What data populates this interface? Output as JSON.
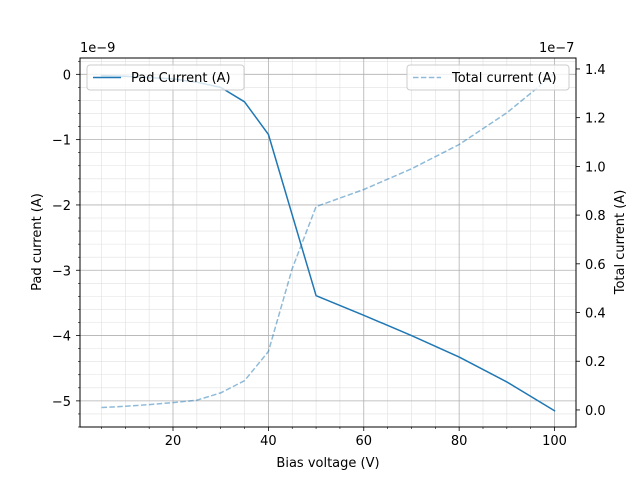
{
  "chart_data": {
    "type": "line",
    "xlabel": "Bias voltage (V)",
    "xlim": [
      0.5,
      104.5
    ],
    "x_ticks": [
      20,
      40,
      60,
      80,
      100
    ],
    "x_minor_step": 5,
    "grid": true,
    "left_axis": {
      "label": "Pad current (A)",
      "offset_text": "1e−9",
      "ylim": [
        -5.4e-09,
        2.5e-10
      ],
      "ticks": [
        0,
        -1e-09,
        -2e-09,
        -3e-09,
        -4e-09,
        -5e-09
      ],
      "tick_labels": [
        "0",
        "−1",
        "−2",
        "−3",
        "−4",
        "−5"
      ],
      "minor_step": 2e-10
    },
    "right_axis": {
      "label": "Total current (A)",
      "offset_text": "1e−7",
      "ylim": [
        -7e-09,
        1.445e-07
      ],
      "ticks": [
        0,
        2e-08,
        4e-08,
        6e-08,
        8e-08,
        1e-07,
        1.2e-07,
        1.4e-07
      ],
      "tick_labels": [
        "0.0",
        "0.2",
        "0.4",
        "0.6",
        "0.8",
        "1.0",
        "1.2",
        "1.4"
      ]
    },
    "series": [
      {
        "name": "Pad Current (A)",
        "axis": "left",
        "color": "#1f77b4",
        "style": "solid",
        "x": [
          5,
          10,
          15,
          20,
          25,
          30,
          35,
          40,
          50,
          60,
          70,
          80,
          90,
          100
        ],
        "y": [
          -2e-11,
          -3e-11,
          -5e-11,
          -7e-11,
          -1.2e-10,
          -2e-10,
          -4.2e-10,
          -9.2e-10,
          -3.39e-09,
          -3.69e-09,
          -4e-09,
          -4.33e-09,
          -4.71e-09,
          -5.15e-09
        ]
      },
      {
        "name": "Total current (A)",
        "axis": "right",
        "color": "#1f77b4",
        "opacity": 0.5,
        "style": "dashed",
        "x": [
          5,
          10,
          15,
          20,
          25,
          30,
          35,
          40,
          45,
          50,
          60,
          70,
          80,
          90,
          100
        ],
        "y": [
          1e-09,
          1.5e-09,
          2.2e-09,
          3e-09,
          4e-09,
          7e-09,
          1.2e-08,
          2.4e-08,
          5.8e-08,
          8.35e-08,
          9.05e-08,
          9.9e-08,
          1.09e-07,
          1.22e-07,
          1.38e-07
        ]
      }
    ],
    "legend_left": {
      "label": "Pad Current (A)",
      "placement": "upper-left"
    },
    "legend_right": {
      "label": "Total current (A)",
      "placement": "upper-right"
    }
  }
}
